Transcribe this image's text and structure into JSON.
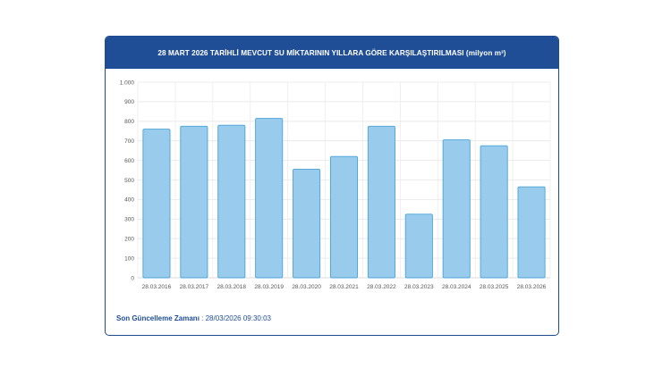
{
  "chart_data": {
    "type": "bar",
    "title": "28 MART 2026 TARİHLİ MEVCUT SU MİKTARININ YILLARA GÖRE KARŞILAŞTIRILMASI (milyon m³)",
    "categories": [
      "28.03.2016",
      "28.03.2017",
      "28.03.2018",
      "28.03.2019",
      "28.03.2020",
      "28.03.2021",
      "28.03.2022",
      "28.03.2023",
      "28.03.2024",
      "28.03.2025",
      "28.03.2026"
    ],
    "values": [
      760,
      775,
      780,
      815,
      555,
      620,
      775,
      325,
      705,
      675,
      465
    ],
    "ylim": [
      0,
      1000
    ],
    "yticks": [
      0,
      100,
      200,
      300,
      400,
      500,
      600,
      700,
      800,
      900,
      1000
    ],
    "ytick_labels": [
      "0",
      "100",
      "200",
      "300",
      "400",
      "500",
      "600",
      "700",
      "800",
      "900",
      "1.000"
    ],
    "xlabel": "",
    "ylabel": "",
    "grid": true,
    "bar_color": "#99ccec",
    "bar_edge_color": "#4ba3d8"
  },
  "footer": {
    "label": "Son Güncelleme Zamanı",
    "separator": " : ",
    "value": "28/03/2026 09:30:03"
  },
  "colors": {
    "header": "#1f4e96",
    "footer_text": "#1f4e96"
  }
}
